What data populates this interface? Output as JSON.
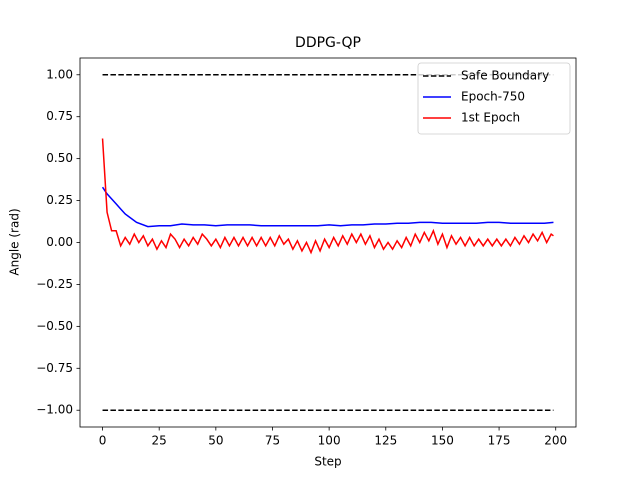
{
  "chart_data": {
    "type": "line",
    "title": "DDPG-QP",
    "xlabel": "Step",
    "ylabel": "Angle (rad)",
    "xlim": [
      -9.95,
      208.95
    ],
    "ylim": [
      -1.1,
      1.1
    ],
    "xticks": [
      0,
      25,
      50,
      75,
      100,
      125,
      150,
      175,
      200
    ],
    "yticks": [
      {
        "value": -1,
        "label": "−1.00"
      },
      {
        "value": -0.75,
        "label": "−0.75"
      },
      {
        "value": -0.5,
        "label": "−0.50"
      },
      {
        "value": -0.25,
        "label": "−0.25"
      },
      {
        "value": 0,
        "label": "0.00"
      },
      {
        "value": 0.25,
        "label": "0.25"
      },
      {
        "value": 0.5,
        "label": "0.50"
      },
      {
        "value": 0.75,
        "label": "0.75"
      },
      {
        "value": 1,
        "label": "1.00"
      }
    ],
    "legend": "upper right",
    "series": [
      {
        "name": "Safe Boundary",
        "color": "#000000",
        "linestyle": "dashed",
        "x": [
          0,
          199
        ],
        "values": [
          1,
          1
        ]
      },
      {
        "color": "#000000",
        "linestyle": "dashed",
        "x": [
          0,
          199
        ],
        "values": [
          -1,
          -1
        ]
      },
      {
        "name": "Epoch-750",
        "color": "#0000ff",
        "linestyle": "solid",
        "x": [
          0,
          2,
          4,
          6,
          8,
          10,
          15,
          20,
          25,
          30,
          35,
          40,
          45,
          50,
          55,
          60,
          65,
          70,
          75,
          80,
          85,
          90,
          95,
          100,
          105,
          110,
          115,
          120,
          125,
          130,
          135,
          140,
          145,
          150,
          155,
          160,
          165,
          170,
          175,
          180,
          185,
          190,
          195,
          199
        ],
        "values": [
          0.33,
          0.29,
          0.26,
          0.23,
          0.2,
          0.17,
          0.12,
          0.095,
          0.1,
          0.1,
          0.11,
          0.105,
          0.105,
          0.1,
          0.105,
          0.105,
          0.105,
          0.1,
          0.1,
          0.1,
          0.1,
          0.1,
          0.1,
          0.105,
          0.1,
          0.105,
          0.105,
          0.11,
          0.11,
          0.115,
          0.115,
          0.12,
          0.12,
          0.115,
          0.115,
          0.115,
          0.115,
          0.12,
          0.12,
          0.115,
          0.115,
          0.115,
          0.115,
          0.12
        ]
      },
      {
        "name": "1st Epoch",
        "color": "#ff0000",
        "linestyle": "solid",
        "x": [
          0,
          2,
          4,
          6,
          8,
          10,
          12,
          14,
          16,
          18,
          20,
          22,
          24,
          26,
          28,
          30,
          32,
          34,
          36,
          38,
          40,
          42,
          44,
          46,
          48,
          50,
          52,
          54,
          56,
          58,
          60,
          62,
          64,
          66,
          68,
          70,
          72,
          74,
          76,
          78,
          80,
          82,
          84,
          86,
          88,
          90,
          92,
          94,
          96,
          98,
          100,
          102,
          104,
          106,
          108,
          110,
          112,
          114,
          116,
          118,
          120,
          122,
          124,
          126,
          128,
          130,
          132,
          134,
          136,
          138,
          140,
          142,
          144,
          146,
          148,
          150,
          152,
          154,
          156,
          158,
          160,
          162,
          164,
          166,
          168,
          170,
          172,
          174,
          176,
          178,
          180,
          182,
          184,
          186,
          188,
          190,
          192,
          194,
          196,
          198,
          199
        ],
        "values": [
          0.62,
          0.18,
          0.07,
          0.07,
          -0.02,
          0.03,
          -0.01,
          0.05,
          0.0,
          0.04,
          -0.02,
          0.02,
          -0.04,
          0.01,
          -0.03,
          0.05,
          0.02,
          -0.03,
          0.02,
          -0.02,
          0.03,
          -0.01,
          0.05,
          0.02,
          -0.02,
          0.02,
          -0.03,
          0.03,
          -0.02,
          0.03,
          -0.02,
          0.03,
          -0.02,
          0.03,
          -0.02,
          0.03,
          -0.02,
          0.03,
          -0.02,
          0.04,
          -0.01,
          0.02,
          -0.04,
          0.01,
          -0.05,
          0.0,
          -0.06,
          0.01,
          -0.05,
          0.02,
          -0.03,
          0.03,
          -0.02,
          0.04,
          -0.01,
          0.05,
          0.0,
          0.05,
          -0.01,
          0.04,
          -0.03,
          0.02,
          -0.04,
          0.0,
          -0.04,
          0.01,
          -0.03,
          0.03,
          -0.02,
          0.05,
          0.0,
          0.06,
          0.01,
          0.07,
          -0.01,
          0.05,
          -0.03,
          0.04,
          -0.01,
          0.03,
          -0.02,
          0.03,
          -0.02,
          0.02,
          -0.02,
          0.02,
          -0.02,
          0.02,
          -0.02,
          0.02,
          -0.02,
          0.03,
          -0.01,
          0.04,
          0.0,
          0.05,
          0.01,
          0.06,
          0.0,
          0.05,
          0.04
        ]
      }
    ]
  }
}
